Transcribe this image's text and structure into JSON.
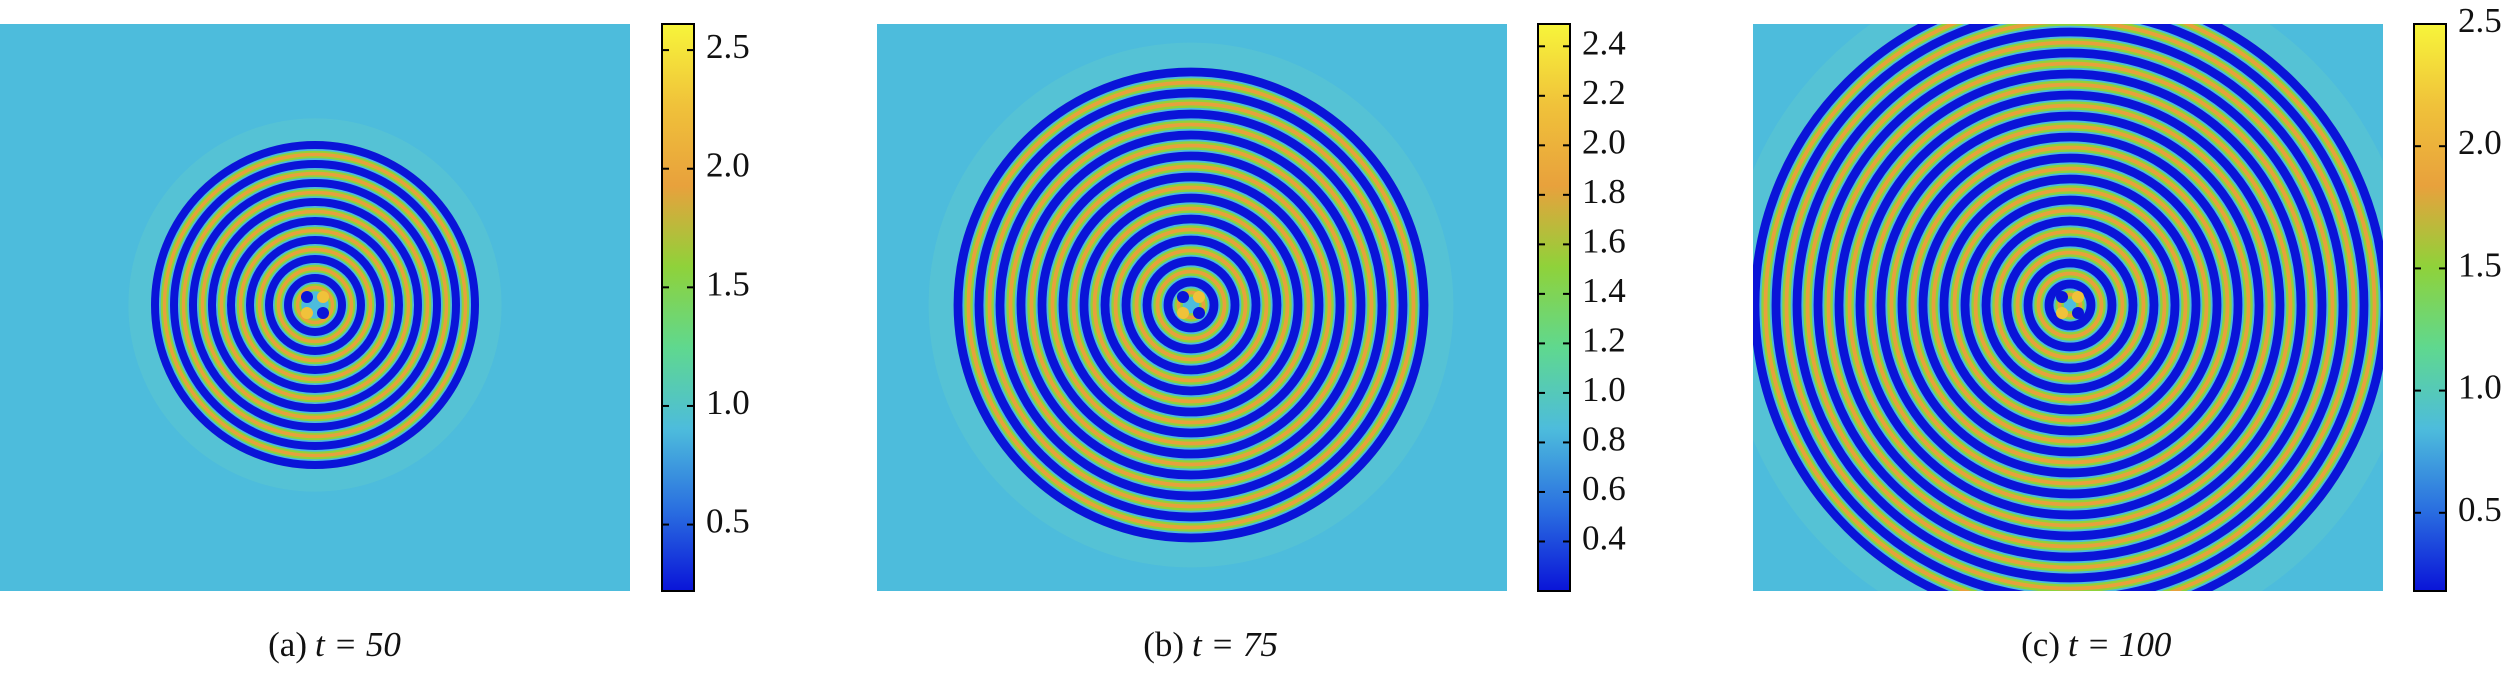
{
  "chart_data": [
    {
      "type": "heatmap",
      "caption_label": "(a)",
      "caption_text": "t = 50",
      "clim": [
        0.22,
        2.61
      ],
      "cticks": [
        0.5,
        {
          "value": 1.0,
          "label": "1.0"
        },
        1.5,
        {
          "value": 2.0,
          "label": "2.0"
        },
        2.5
      ],
      "colormap": [
        "#0a14d8",
        "#2a6fe0",
        "#4dbcdc",
        "#5fd88f",
        "#8fd23a",
        "#e8a13c",
        "#f0c23a",
        "#f7f53a"
      ]
    },
    {
      "type": "heatmap",
      "caption_label": "(b)",
      "caption_text": "t = 75",
      "clim": [
        0.2,
        2.49
      ],
      "cticks": [
        0.4,
        0.6,
        0.8,
        {
          "value": 1.0,
          "label": "1.0"
        },
        1.2,
        1.4,
        1.6,
        1.8,
        {
          "value": 2.0,
          "label": "2.0"
        },
        2.2,
        2.4
      ],
      "colormap": [
        "#0a14d8",
        "#2a6fe0",
        "#4dbcdc",
        "#5fd88f",
        "#8fd23a",
        "#e8a13c",
        "#f0c23a",
        "#f7f53a"
      ]
    },
    {
      "type": "heatmap",
      "caption_label": "(c)",
      "caption_text": "t = 100",
      "clim": [
        0.18,
        2.5
      ],
      "cticks": [
        0.5,
        {
          "value": 1.0,
          "label": "1.0"
        },
        1.5,
        {
          "value": 2.0,
          "label": "2.0"
        },
        2.5
      ],
      "colormap": [
        "#0a14d8",
        "#2a6fe0",
        "#4dbcdc",
        "#5fd88f",
        "#8fd23a",
        "#e8a13c",
        "#f0c23a",
        "#f7f53a"
      ]
    }
  ]
}
